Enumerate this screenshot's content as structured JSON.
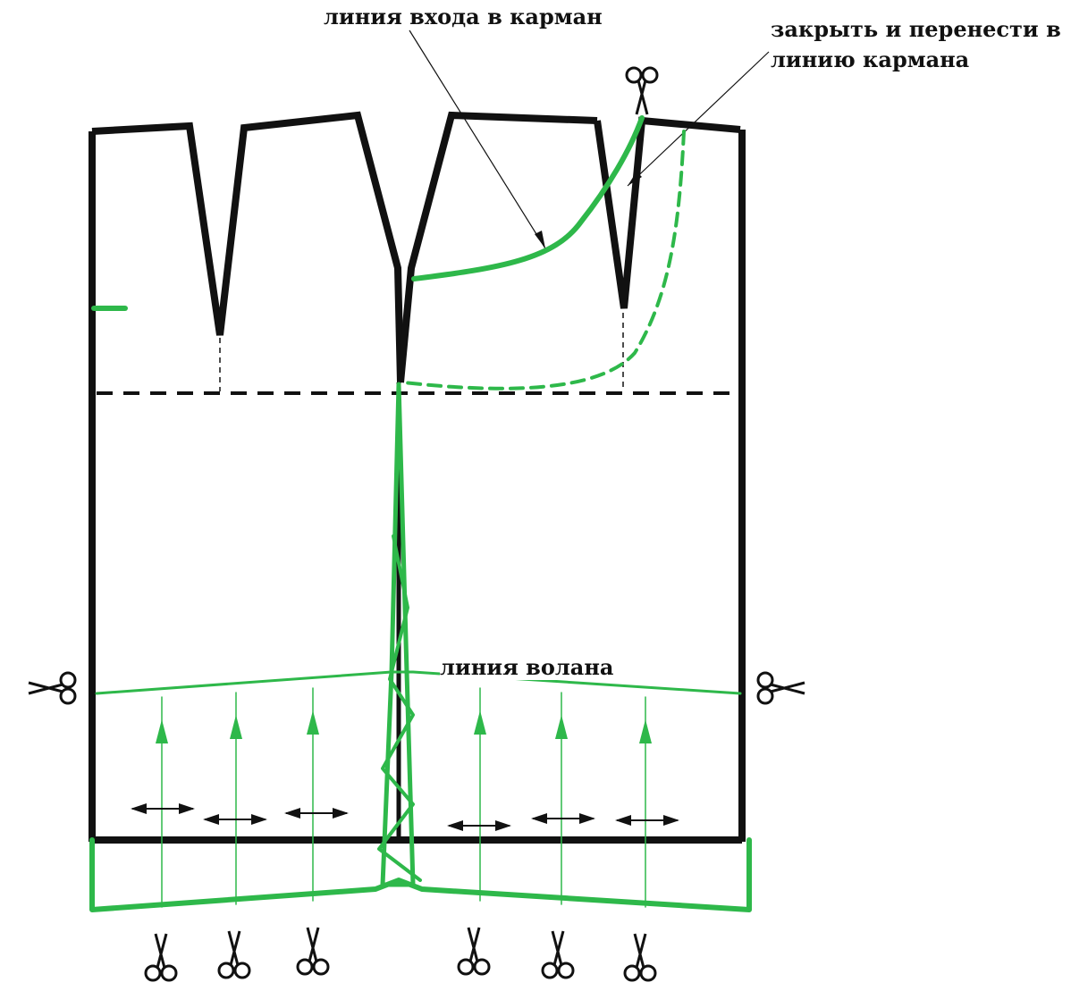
{
  "labels": {
    "pocket_entry": "линия входа в карман",
    "close_transfer_line1": "закрыть и перенести в",
    "close_transfer_line2": "линию кармана",
    "flounce_line": "линия волана"
  },
  "colors": {
    "outline": "#111111",
    "green": "#2eb84a",
    "background": "#ffffff"
  },
  "icons": [
    "scissors-icon",
    "double-arrow-icon",
    "arrow-up-icon"
  ]
}
